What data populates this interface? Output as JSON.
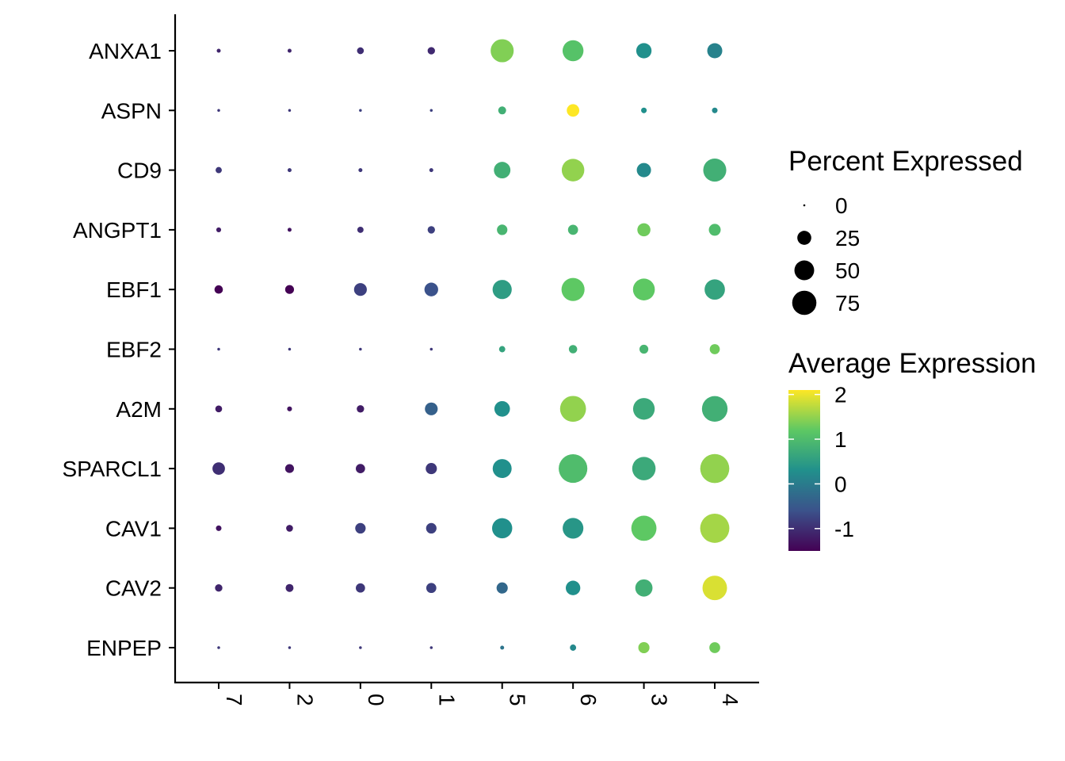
{
  "chart_data": {
    "type": "dotplot",
    "categories": [
      "7",
      "2",
      "0",
      "1",
      "5",
      "6",
      "3",
      "4"
    ],
    "genes": [
      "ANXA1",
      "ASPN",
      "CD9",
      "ANGPT1",
      "EBF1",
      "EBF2",
      "A2M",
      "SPARCL1",
      "CAV1",
      "CAV2",
      "ENPEP"
    ],
    "percent_expressed": [
      [
        2,
        2,
        6,
        7,
        68,
        56,
        30,
        29
      ],
      [
        1,
        1,
        1,
        1,
        8,
        20,
        4,
        4
      ],
      [
        5,
        2,
        2,
        2,
        35,
        65,
        26,
        68
      ],
      [
        3,
        2,
        5,
        7,
        14,
        13,
        22,
        18
      ],
      [
        9,
        10,
        21,
        24,
        47,
        68,
        61,
        53
      ],
      [
        1,
        1,
        1,
        1,
        5,
        9,
        10,
        13
      ],
      [
        6,
        3,
        7,
        21,
        31,
        86,
        60,
        84
      ],
      [
        20,
        10,
        11,
        16,
        46,
        105,
        70,
        108
      ],
      [
        4,
        6,
        14,
        14,
        52,
        55,
        81,
        109
      ],
      [
        7,
        8,
        11,
        13,
        16,
        27,
        38,
        77
      ],
      [
        1,
        1,
        1,
        1,
        2,
        5,
        16,
        15
      ]
    ],
    "average_expression": [
      [
        -1.1,
        -1.1,
        -1.0,
        -1.05,
        1.4,
        1.1,
        0.3,
        0.1
      ],
      [
        -0.9,
        -0.9,
        -0.8,
        -0.8,
        0.8,
        2.1,
        0.3,
        0.2
      ],
      [
        -0.9,
        -0.9,
        -0.9,
        -0.9,
        0.8,
        1.5,
        0.2,
        0.8
      ],
      [
        -1.2,
        -1.3,
        -1.0,
        -0.8,
        0.9,
        0.9,
        1.3,
        1.0
      ],
      [
        -1.5,
        -1.5,
        -0.8,
        -0.6,
        0.5,
        1.2,
        1.2,
        0.6
      ],
      [
        -0.9,
        -0.9,
        -0.9,
        -0.9,
        0.6,
        0.8,
        0.9,
        1.3
      ],
      [
        -1.2,
        -1.3,
        -1.2,
        -0.4,
        0.3,
        1.5,
        0.7,
        0.8
      ],
      [
        -1.0,
        -1.3,
        -1.2,
        -0.9,
        0.3,
        1.0,
        0.7,
        1.5
      ],
      [
        -1.3,
        -1.2,
        -0.8,
        -0.8,
        0.3,
        0.4,
        1.2,
        1.6
      ],
      [
        -1.1,
        -1.1,
        -0.9,
        -0.8,
        -0.3,
        0.3,
        0.8,
        1.9
      ],
      [
        -0.9,
        -0.9,
        -0.9,
        -0.9,
        -0.1,
        0.2,
        1.4,
        1.3
      ]
    ],
    "size_legend": {
      "title": "Percent Expressed",
      "breaks": [
        0,
        25,
        50,
        75
      ],
      "labels": [
        "0",
        "25",
        "50",
        "75"
      ]
    },
    "color_legend": {
      "title": "Average Expression",
      "breaks": [
        2,
        1,
        0,
        -1
      ],
      "labels": [
        "2",
        "1",
        "0",
        "-1"
      ],
      "range": [
        -1.5,
        2.1
      ],
      "palette": [
        "#440154",
        "#3b528b",
        "#21908c",
        "#5dc863",
        "#fde725"
      ]
    }
  }
}
